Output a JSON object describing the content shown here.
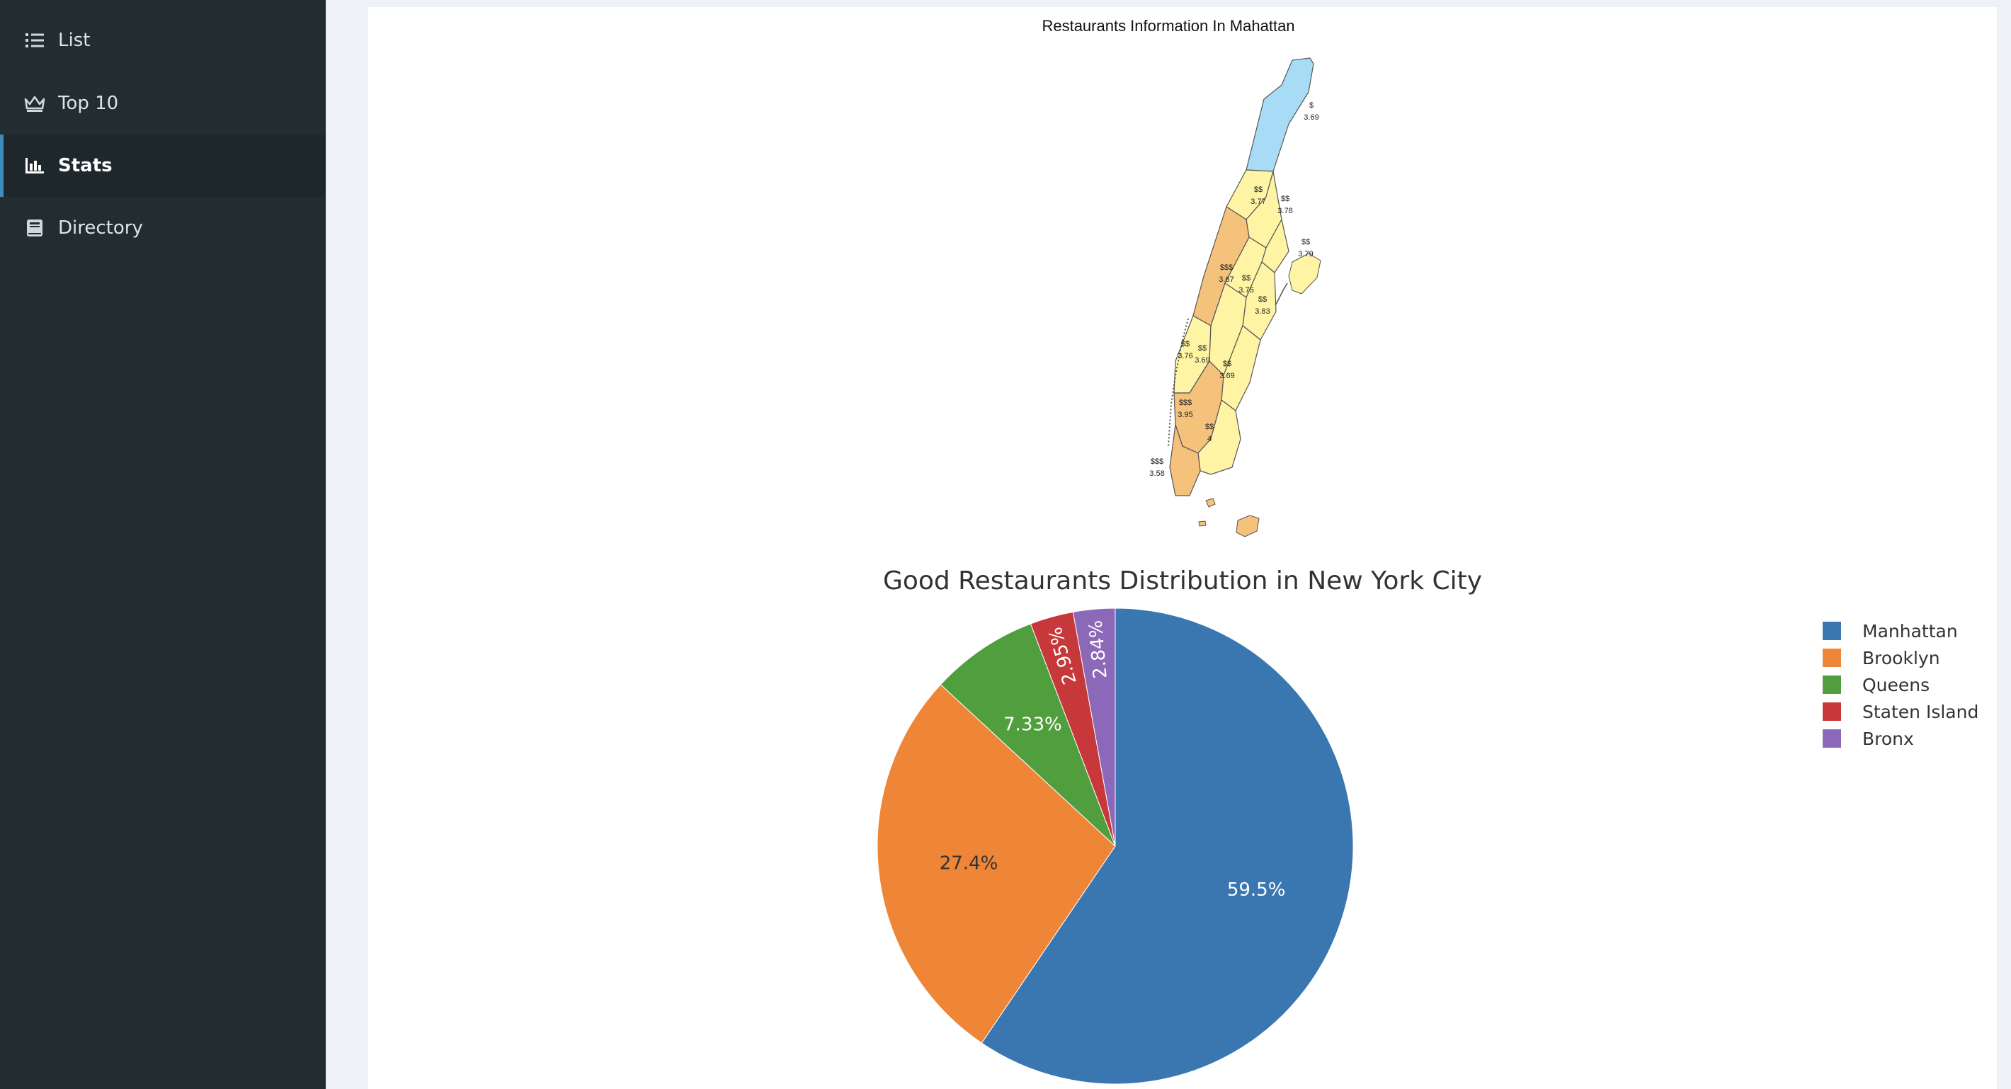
{
  "sidebar": {
    "items": [
      {
        "label": "List",
        "icon": "list-icon",
        "active": false
      },
      {
        "label": "Top 10",
        "icon": "crown-icon",
        "active": false
      },
      {
        "label": "Stats",
        "icon": "bar-chart-icon",
        "active": true
      },
      {
        "label": "Directory",
        "icon": "book-icon",
        "active": false
      }
    ]
  },
  "map": {
    "title": "Restaurants Information In Mahattan",
    "colors": {
      "low": "#a8dcf6",
      "mid": "#fff4a3",
      "high": "#f5c27c",
      "stroke": "#555555"
    },
    "regions": [
      {
        "price": "$",
        "rating": "3.69"
      },
      {
        "price": "$$",
        "rating": "3.77"
      },
      {
        "price": "$$",
        "rating": "3.78"
      },
      {
        "price": "$$",
        "rating": "3.79"
      },
      {
        "price": "$$$",
        "rating": "3.67"
      },
      {
        "price": "$$",
        "rating": "3.75"
      },
      {
        "price": "$$",
        "rating": "3.83"
      },
      {
        "price": "$$",
        "rating": "3.76"
      },
      {
        "price": "$$",
        "rating": "3.69"
      },
      {
        "price": "$$",
        "rating": "3.69"
      },
      {
        "price": "$$$",
        "rating": "3.95"
      },
      {
        "price": "$$",
        "rating": "4"
      },
      {
        "price": "$$$",
        "rating": "3.58"
      }
    ]
  },
  "chart_data": {
    "type": "pie",
    "title": "Good Restaurants Distribution in New York City",
    "labels": [
      "Manhattan",
      "Brooklyn",
      "Queens",
      "Staten Island",
      "Bronx"
    ],
    "values": [
      59.5,
      27.4,
      7.33,
      2.95,
      2.84
    ],
    "text_labels": [
      "59.5%",
      "27.4%",
      "7.33%",
      "2.95%",
      "2.84%"
    ],
    "colors": [
      "#3a76b0",
      "#ee8537",
      "#519e3e",
      "#c7383a",
      "#8c68b8"
    ],
    "direction": "clockwise",
    "legend_position": "top-right"
  }
}
